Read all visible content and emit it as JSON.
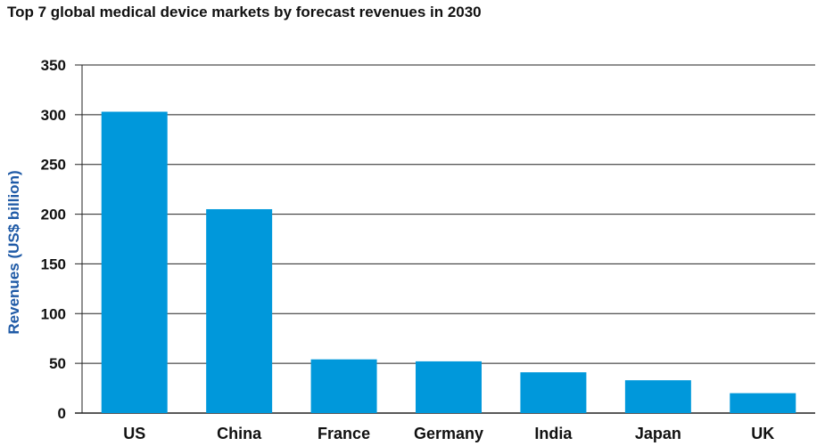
{
  "chart_data": {
    "type": "bar",
    "title": "Top 7 global medical device markets by forecast revenues in 2030",
    "xlabel": "",
    "ylabel": "Revenues (US$ billion)",
    "categories": [
      "US",
      "China",
      "France",
      "Germany",
      "India",
      "Japan",
      "UK"
    ],
    "values": [
      303,
      205,
      54,
      52,
      41,
      33,
      20
    ],
    "ylim": [
      0,
      350
    ],
    "yticks": [
      0,
      50,
      100,
      150,
      200,
      250,
      300,
      350
    ],
    "grid": true,
    "legend": "none",
    "colors": {
      "bar": "#0098db",
      "ylabel": "#1f5aa6",
      "grid": "#222222",
      "text": "#111111"
    }
  }
}
